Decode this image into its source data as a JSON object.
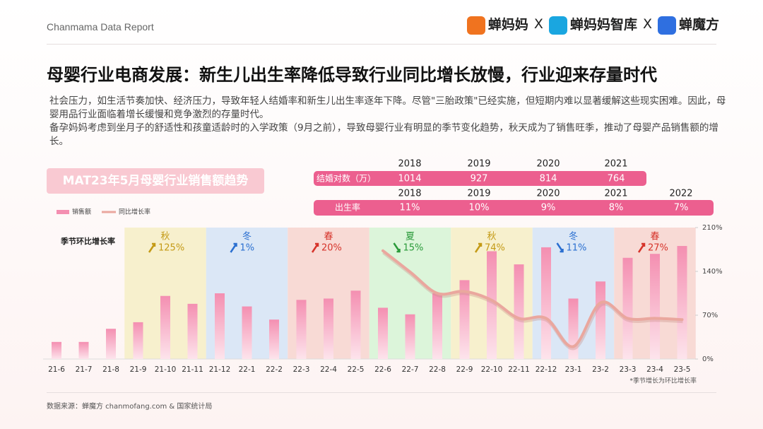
{
  "header": {
    "report": "Chanmama Data Report",
    "logos": [
      "蝉妈妈",
      "蝉妈妈智库",
      "蝉魔方"
    ],
    "separator": "X"
  },
  "title": "母婴行业电商发展：新生儿出生率降低导致行业同比增长放慢，行业迎来存量时代",
  "paragraphs": [
    "社会压力，如生活节奏加快、经济压力，导致年轻人结婚率和新生儿出生率逐年下降。尽管\"三胎政策\"已经实施，但短期内难以显著缓解这些现实困难。因此，母婴用品行业面临着增长缓慢和竞争激烈的存量时代。",
    "备孕妈妈考虑到坐月子的舒适性和孩童适龄时的入学政策（9月之前），导致母婴行业有明显的季节变化趋势，秋天成为了销售旺季，推动了母婴产品销售额的增长。"
  ],
  "marriage_table": {
    "label": "结婚对数（万）",
    "years": [
      "2018",
      "2019",
      "2020",
      "2021"
    ],
    "values": [
      1014,
      927,
      814,
      764
    ]
  },
  "birth_table": {
    "label": "出生率",
    "years": [
      "2018",
      "2019",
      "2020",
      "2021",
      "2022"
    ],
    "values": [
      11,
      10,
      9,
      8,
      7
    ],
    "value_labels": [
      "11%",
      "10%",
      "9%",
      "8%",
      "7%"
    ]
  },
  "chart_data": {
    "type": "bar",
    "title": "MAT23年5月母婴行业销售额趋势",
    "categories": [
      "21-6",
      "21-7",
      "21-8",
      "21-9",
      "21-10",
      "21-11",
      "21-12",
      "22-1",
      "22-2",
      "22-3",
      "22-4",
      "22-5",
      "22-6",
      "22-7",
      "22-8",
      "22-9",
      "22-10",
      "22-11",
      "22-12",
      "23-1",
      "23-2",
      "23-3",
      "23-4",
      "23-5"
    ],
    "series": [
      {
        "name": "销售额",
        "color": "#f48fb1",
        "values": [
          13,
          13,
          23,
          28,
          48,
          42,
          50,
          40,
          30,
          45,
          46,
          52,
          39,
          34,
          50,
          60,
          82,
          72,
          85,
          46,
          59,
          77,
          80,
          86
        ]
      },
      {
        "name": "同比增长率",
        "type": "line",
        "axis": "y2",
        "color": "#eaa79e",
        "values": [
          null,
          null,
          null,
          null,
          null,
          null,
          null,
          null,
          null,
          null,
          null,
          null,
          173,
          139,
          105,
          108,
          94,
          65,
          65,
          20,
          90,
          65,
          65,
          63
        ]
      }
    ],
    "ylim": [
      0,
      100
    ],
    "y2lim": [
      0,
      210
    ],
    "y2ticks": [
      {
        "value": 0,
        "label": "0%"
      },
      {
        "value": 70,
        "label": "70%"
      },
      {
        "value": 140,
        "label": "140%"
      },
      {
        "value": 210,
        "label": "210%"
      }
    ],
    "season_label": "季节环比增长率",
    "seasons": [
      {
        "name": "秋",
        "start": "21-9",
        "end": "21-11",
        "change": 125,
        "change_label": "125%",
        "direction": "up",
        "color": "#f7f0cd",
        "text_color": "#c49a16"
      },
      {
        "name": "冬",
        "start": "21-12",
        "end": "22-2",
        "change": 1,
        "change_label": "1%",
        "direction": "up",
        "color": "#dbe7f6",
        "text_color": "#2a6fd0"
      },
      {
        "name": "春",
        "start": "22-3",
        "end": "22-5",
        "change": 20,
        "change_label": "20%",
        "direction": "up",
        "color": "#f8dad5",
        "text_color": "#d6332a"
      },
      {
        "name": "夏",
        "start": "22-6",
        "end": "22-8",
        "change": 15,
        "change_label": "15%",
        "direction": "down",
        "color": "#dcf5da",
        "text_color": "#2a9a3a"
      },
      {
        "name": "秋",
        "start": "22-9",
        "end": "22-11",
        "change": 74,
        "change_label": "74%",
        "direction": "up",
        "color": "#f7f0cd",
        "text_color": "#c49a16"
      },
      {
        "name": "冬",
        "start": "22-12",
        "end": "23-2",
        "change": 11,
        "change_label": "11%",
        "direction": "down",
        "color": "#dbe7f6",
        "text_color": "#2a6fd0"
      },
      {
        "name": "春",
        "start": "23-3",
        "end": "23-5",
        "change": 27,
        "change_label": "27%",
        "direction": "up",
        "color": "#f8dad5",
        "text_color": "#d6332a"
      }
    ],
    "note": "*季节增长为环比增长率"
  },
  "source": "数据来源：蝉魔方 chanmofang.com & 国家统计局"
}
